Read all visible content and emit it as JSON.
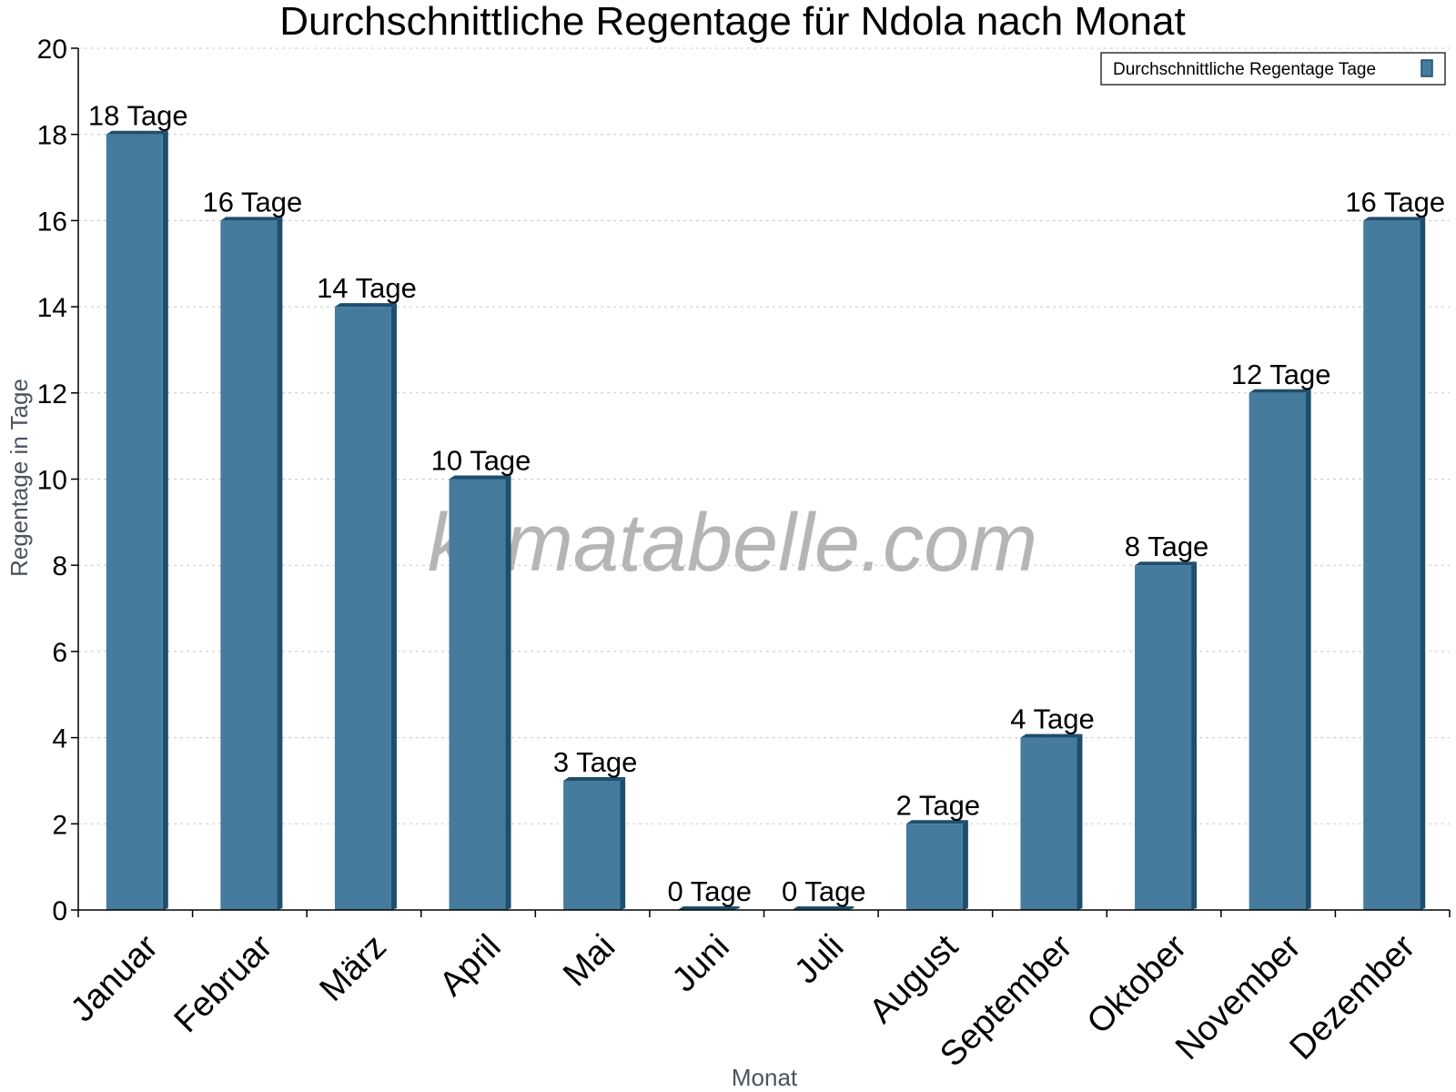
{
  "chart_data": {
    "type": "bar",
    "title": "Durchschnittliche Regentage für Ndola nach Monat",
    "xlabel": "Monat",
    "ylabel": "Regentage in Tage",
    "ylim": [
      0,
      20
    ],
    "yticks": [
      0,
      2,
      4,
      6,
      8,
      10,
      12,
      14,
      16,
      18,
      20
    ],
    "grid": true,
    "legend_position": "top-right",
    "categories": [
      "Januar",
      "Februar",
      "März",
      "April",
      "Mai",
      "Juni",
      "Juli",
      "August",
      "September",
      "Oktober",
      "November",
      "Dezember"
    ],
    "series": [
      {
        "name": "Durchschnittliche Regentage Tage",
        "values": [
          18,
          16,
          14,
          10,
          3,
          0,
          0,
          2,
          4,
          8,
          12,
          16
        ],
        "labels": [
          "18 Tage",
          "16 Tage",
          "14 Tage",
          "10 Tage",
          "3 Tage",
          "0 Tage",
          "0 Tage",
          "2 Tage",
          "4 Tage",
          "8 Tage",
          "12 Tage",
          "16 Tage"
        ],
        "color": "#457b9d",
        "edge_color": "#1d4e6e"
      }
    ],
    "watermark": "klimatabelle.com"
  }
}
